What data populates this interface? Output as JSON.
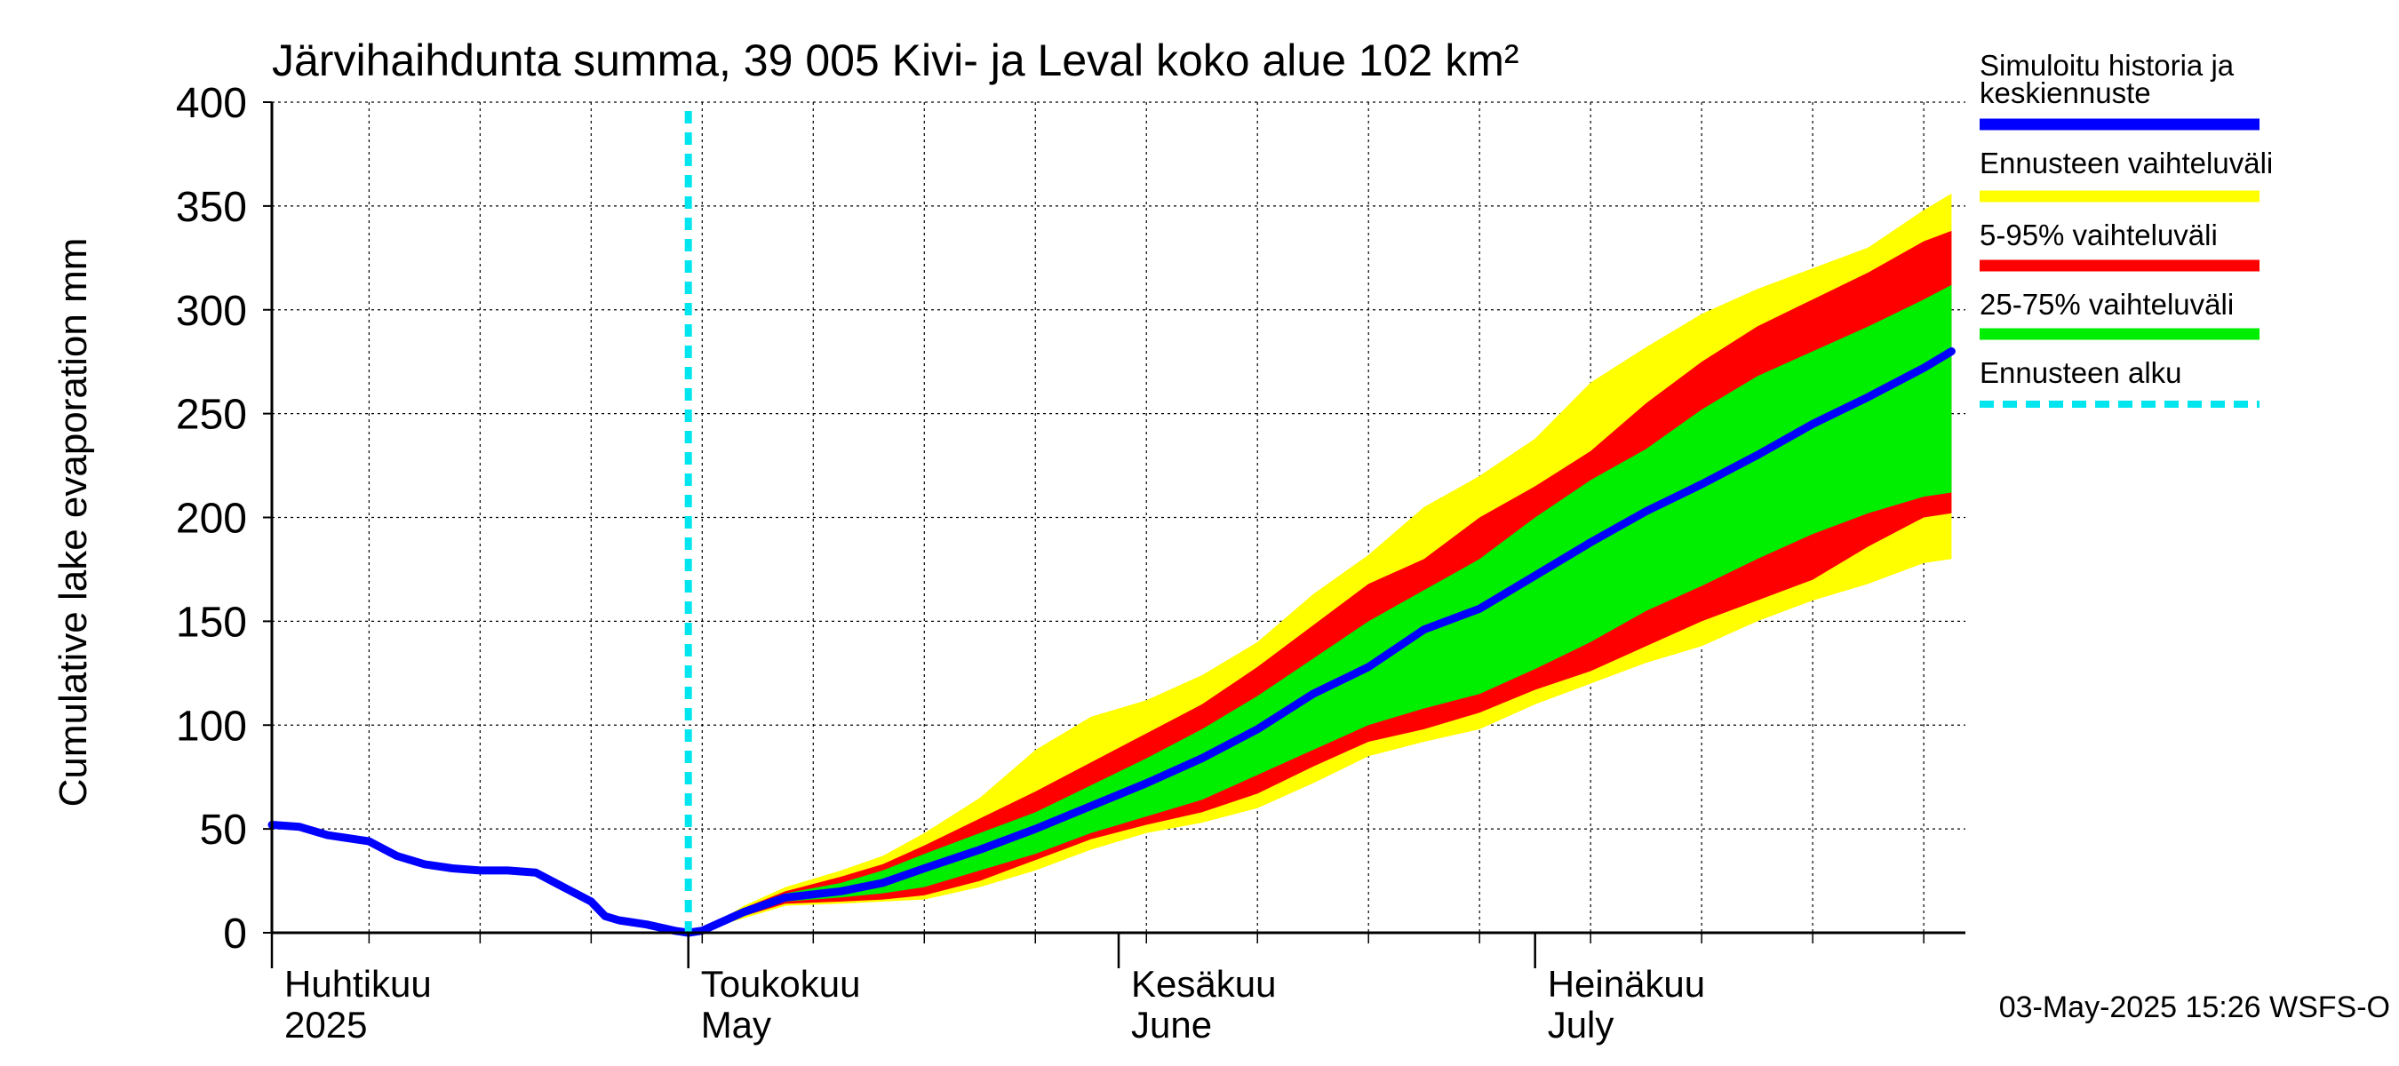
{
  "chart_data": {
    "type": "area",
    "title": "Järvihaihdunta summa, 39 005 Kivi- ja Leval koko alue 102 km²",
    "ylabel": "Cumulative lake evaporation   mm",
    "ylim": [
      0,
      400
    ],
    "yticks": [
      0,
      50,
      100,
      150,
      200,
      250,
      300,
      350,
      400
    ],
    "xlim": [
      "2025-04-01",
      "2025-07-31"
    ],
    "month_labels": [
      {
        "top": "Huhtikuu",
        "bottom": "2025"
      },
      {
        "top": "Toukokuu",
        "bottom": "May"
      },
      {
        "top": "Kesäkuu",
        "bottom": "June"
      },
      {
        "top": "Heinäkuu",
        "bottom": "July"
      }
    ],
    "grid": true,
    "forecast_start": "2025-05-01",
    "footer": "03-May-2025 15:26 WSFS-O",
    "legend": [
      {
        "label": "Simuloitu historia ja keskiennuste",
        "color": "#0000ff",
        "style": "solid"
      },
      {
        "label": "Ennusteen vaihteluväli",
        "color": "#ffff00",
        "style": "solid"
      },
      {
        "label": "5-95% vaihteluväli",
        "color": "#ff0000",
        "style": "solid"
      },
      {
        "label": "25-75% vaihteluväli",
        "color": "#00ee00",
        "style": "solid"
      },
      {
        "label": "Ennusteen alku",
        "color": "#00e5ee",
        "style": "dashed"
      }
    ],
    "history": {
      "name": "Simuloitu historia ja keskiennuste",
      "x": [
        "2025-04-01",
        "2025-04-03",
        "2025-04-05",
        "2025-04-08",
        "2025-04-10",
        "2025-04-12",
        "2025-04-14",
        "2025-04-16",
        "2025-04-18",
        "2025-04-20",
        "2025-04-22",
        "2025-04-24",
        "2025-04-25",
        "2025-04-26",
        "2025-04-28",
        "2025-04-30",
        "2025-05-01",
        "2025-05-02"
      ],
      "y": [
        52,
        51,
        47,
        44,
        37,
        33,
        31,
        30,
        30,
        29,
        22,
        15,
        8,
        6,
        4,
        1,
        0,
        1
      ]
    },
    "forecast": {
      "x": [
        "2025-05-02",
        "2025-05-05",
        "2025-05-08",
        "2025-05-12",
        "2025-05-15",
        "2025-05-18",
        "2025-05-22",
        "2025-05-26",
        "2025-05-30",
        "2025-06-03",
        "2025-06-07",
        "2025-06-11",
        "2025-06-15",
        "2025-06-19",
        "2025-06-23",
        "2025-06-27",
        "2025-07-01",
        "2025-07-05",
        "2025-07-09",
        "2025-07-13",
        "2025-07-17",
        "2025-07-21",
        "2025-07-25",
        "2025-07-29",
        "2025-07-31"
      ],
      "median": [
        1,
        10,
        17,
        20,
        24,
        31,
        40,
        50,
        61,
        72,
        84,
        98,
        115,
        128,
        146,
        156,
        172,
        188,
        203,
        216,
        230,
        245,
        258,
        272,
        280
      ],
      "p25": [
        1,
        9,
        15,
        17,
        19,
        22,
        30,
        38,
        48,
        56,
        64,
        76,
        88,
        100,
        108,
        115,
        127,
        140,
        155,
        167,
        180,
        192,
        202,
        210,
        212
      ],
      "p75": [
        1,
        11,
        19,
        24,
        30,
        38,
        48,
        58,
        71,
        84,
        98,
        114,
        132,
        150,
        165,
        180,
        200,
        218,
        233,
        252,
        268,
        280,
        292,
        305,
        312
      ],
      "p5": [
        1,
        8,
        14,
        15,
        16,
        18,
        25,
        35,
        45,
        52,
        58,
        67,
        80,
        92,
        98,
        106,
        117,
        126,
        138,
        150,
        160,
        170,
        186,
        200,
        202
      ],
      "p95": [
        1,
        12,
        20,
        27,
        33,
        42,
        55,
        68,
        82,
        96,
        110,
        128,
        148,
        168,
        180,
        200,
        215,
        232,
        255,
        275,
        292,
        305,
        318,
        333,
        338
      ],
      "min": [
        1,
        7,
        13,
        14,
        15,
        16,
        22,
        30,
        40,
        48,
        53,
        60,
        72,
        85,
        92,
        98,
        110,
        120,
        130,
        138,
        150,
        160,
        168,
        178,
        180
      ],
      "max": [
        1,
        13,
        22,
        30,
        37,
        48,
        65,
        88,
        104,
        112,
        124,
        140,
        163,
        182,
        205,
        220,
        238,
        265,
        282,
        298,
        310,
        320,
        330,
        348,
        356
      ]
    }
  }
}
